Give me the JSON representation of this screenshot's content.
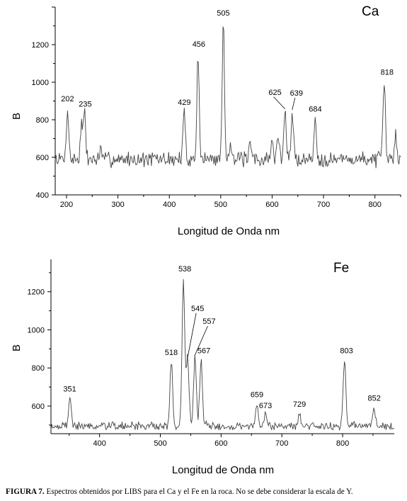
{
  "caption": {
    "label": "FIGURA 7.",
    "text": "Espectros obtenidos por LIBS para el Ca y el Fe en la roca. No se debe considerar la escala de Y."
  },
  "chart_data": [
    {
      "type": "line",
      "element_label": "Ca",
      "xlabel": "Longitud de Onda nm",
      "ylabel": "B",
      "xlim": [
        178,
        850
      ],
      "ylim": [
        400,
        1400
      ],
      "xticks": [
        200,
        300,
        400,
        500,
        600,
        700,
        800
      ],
      "yticks": [
        400,
        600,
        800,
        1000,
        1200
      ],
      "baseline": 590,
      "noise": 55,
      "line_color": "#444444",
      "peaks": [
        {
          "x": 202,
          "y": 865,
          "label": "202"
        },
        {
          "x": 229,
          "y": 770,
          "label": ""
        },
        {
          "x": 235,
          "y": 835,
          "label": "235"
        },
        {
          "x": 267,
          "y": 640,
          "label": ""
        },
        {
          "x": 429,
          "y": 845,
          "label": "429"
        },
        {
          "x": 456,
          "y": 1155,
          "label": "456"
        },
        {
          "x": 505,
          "y": 1320,
          "label": "505"
        },
        {
          "x": 519,
          "y": 700,
          "label": ""
        },
        {
          "x": 558,
          "y": 660,
          "label": ""
        },
        {
          "x": 600,
          "y": 690,
          "label": ""
        },
        {
          "x": 612,
          "y": 720,
          "label": ""
        },
        {
          "x": 625,
          "y": 850,
          "label": "625"
        },
        {
          "x": 639,
          "y": 845,
          "label": "639"
        },
        {
          "x": 684,
          "y": 810,
          "label": "684"
        },
        {
          "x": 818,
          "y": 1005,
          "label": "818"
        },
        {
          "x": 840,
          "y": 725,
          "label": ""
        }
      ]
    },
    {
      "type": "line",
      "element_label": "Fe",
      "xlabel": "Longitud de Onda nm",
      "ylabel": "B",
      "xlim": [
        320,
        885
      ],
      "ylim": [
        455,
        1370
      ],
      "xticks": [
        400,
        500,
        600,
        700,
        800
      ],
      "yticks": [
        600,
        800,
        1000,
        1200
      ],
      "baseline": 495,
      "noise": 30,
      "line_color": "#444444",
      "peaks": [
        {
          "x": 351,
          "y": 640,
          "label": "351"
        },
        {
          "x": 518,
          "y": 830,
          "label": "518"
        },
        {
          "x": 538,
          "y": 1270,
          "label": "538"
        },
        {
          "x": 545,
          "y": 850,
          "label": "545"
        },
        {
          "x": 557,
          "y": 860,
          "label": "557"
        },
        {
          "x": 567,
          "y": 840,
          "label": "567"
        },
        {
          "x": 659,
          "y": 610,
          "label": "659"
        },
        {
          "x": 673,
          "y": 560,
          "label": "673"
        },
        {
          "x": 729,
          "y": 560,
          "label": "729"
        },
        {
          "x": 803,
          "y": 840,
          "label": "803"
        },
        {
          "x": 852,
          "y": 590,
          "label": "852"
        }
      ]
    }
  ]
}
